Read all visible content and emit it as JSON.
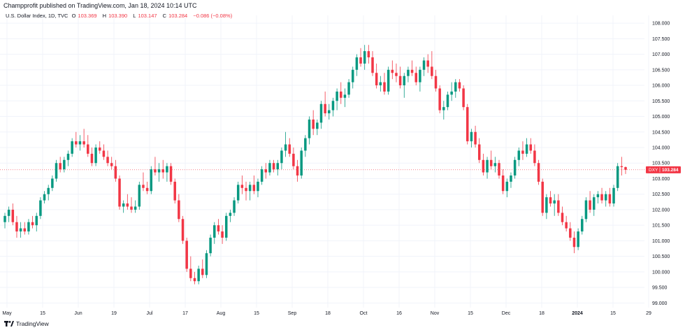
{
  "publisher_line": "Champprofit published on TradingView.com, Jan 18, 2024 10:14 UTC",
  "legend": {
    "symbol": "U.S. Dollar Index, 1D, TVC",
    "o_label": "O",
    "o_value": "103.369",
    "h_label": "H",
    "h_value": "103.390",
    "l_label": "L",
    "l_value": "103.147",
    "c_label": "C",
    "c_value": "103.284",
    "change": "−0.086 (−0.08%)"
  },
  "price_tag": {
    "ticker": "DXY",
    "value": "103.284"
  },
  "brand": "TradingView",
  "colors": {
    "up": "#089981",
    "down": "#f23645",
    "grid": "#f0f3fa",
    "price_line": "#f23645"
  },
  "chart_data": {
    "type": "candlestick",
    "y_ticks": [
      "99.000",
      "99.500",
      "100.000",
      "100.500",
      "101.000",
      "101.500",
      "102.000",
      "102.500",
      "103.000",
      "103.500",
      "104.000",
      "104.500",
      "105.000",
      "105.500",
      "106.000",
      "106.500",
      "107.000",
      "107.500",
      "108.000"
    ],
    "ylim": [
      98.85,
      108.25
    ],
    "x_ticks": [
      "May",
      "15",
      "Jun",
      "19",
      "Jul",
      "17",
      "Aug",
      "15",
      "Sep",
      "18",
      "Oct",
      "16",
      "Nov",
      "15",
      "Dec",
      "18",
      "2024",
      "15",
      "29"
    ],
    "last_close": 103.284,
    "candles": [
      [
        101.6,
        101.9,
        101.4,
        101.8
      ],
      [
        101.8,
        102.1,
        101.6,
        102.0
      ],
      [
        102.0,
        102.2,
        101.5,
        101.6
      ],
      [
        101.6,
        101.8,
        101.1,
        101.3
      ],
      [
        101.3,
        101.6,
        101.1,
        101.4
      ],
      [
        101.4,
        101.6,
        101.2,
        101.3
      ],
      [
        101.3,
        101.7,
        101.2,
        101.6
      ],
      [
        101.6,
        101.8,
        101.4,
        101.5
      ],
      [
        101.5,
        101.9,
        101.3,
        101.8
      ],
      [
        101.8,
        102.4,
        101.7,
        102.3
      ],
      [
        102.3,
        102.6,
        102.2,
        102.5
      ],
      [
        102.5,
        102.8,
        102.3,
        102.7
      ],
      [
        102.7,
        103.1,
        102.6,
        103.0
      ],
      [
        103.0,
        103.6,
        102.9,
        103.5
      ],
      [
        103.5,
        103.7,
        103.2,
        103.3
      ],
      [
        103.3,
        103.7,
        103.2,
        103.6
      ],
      [
        103.6,
        103.9,
        103.4,
        103.8
      ],
      [
        103.8,
        104.3,
        103.7,
        104.2
      ],
      [
        104.2,
        104.5,
        104.0,
        104.1
      ],
      [
        104.1,
        104.4,
        103.9,
        104.2
      ],
      [
        104.2,
        104.6,
        104.0,
        104.1
      ],
      [
        104.1,
        104.4,
        103.7,
        103.8
      ],
      [
        103.8,
        104.0,
        103.4,
        103.5
      ],
      [
        103.5,
        104.1,
        103.4,
        104.0
      ],
      [
        104.0,
        104.2,
        103.8,
        103.9
      ],
      [
        103.9,
        104.1,
        103.6,
        103.7
      ],
      [
        103.7,
        103.9,
        103.4,
        103.5
      ],
      [
        103.5,
        103.7,
        103.3,
        103.4
      ],
      [
        103.4,
        103.6,
        102.9,
        103.0
      ],
      [
        103.0,
        103.1,
        102.0,
        102.1
      ],
      [
        102.1,
        102.3,
        101.9,
        102.2
      ],
      [
        102.2,
        102.5,
        102.0,
        102.1
      ],
      [
        102.1,
        102.4,
        101.9,
        102.0
      ],
      [
        102.0,
        102.3,
        101.9,
        102.1
      ],
      [
        102.1,
        102.9,
        102.0,
        102.8
      ],
      [
        102.8,
        103.2,
        102.6,
        102.7
      ],
      [
        102.7,
        102.9,
        102.5,
        102.6
      ],
      [
        102.6,
        103.4,
        102.5,
        103.3
      ],
      [
        103.3,
        103.7,
        103.1,
        103.2
      ],
      [
        103.2,
        103.5,
        102.9,
        103.3
      ],
      [
        103.3,
        103.6,
        103.0,
        103.2
      ],
      [
        103.2,
        103.5,
        102.9,
        103.4
      ],
      [
        103.4,
        103.5,
        102.8,
        102.9
      ],
      [
        102.9,
        103.0,
        102.2,
        102.3
      ],
      [
        102.3,
        102.5,
        101.6,
        101.7
      ],
      [
        101.7,
        101.8,
        100.9,
        101.0
      ],
      [
        101.0,
        101.1,
        100.0,
        100.1
      ],
      [
        100.1,
        100.5,
        99.7,
        99.8
      ],
      [
        99.8,
        100.0,
        99.6,
        99.7
      ],
      [
        99.7,
        100.2,
        99.6,
        100.1
      ],
      [
        100.1,
        100.4,
        99.8,
        99.9
      ],
      [
        99.9,
        100.7,
        99.8,
        100.6
      ],
      [
        100.6,
        101.2,
        100.5,
        101.1
      ],
      [
        101.1,
        101.6,
        100.9,
        101.5
      ],
      [
        101.5,
        101.7,
        101.2,
        101.3
      ],
      [
        101.3,
        101.5,
        100.9,
        101.1
      ],
      [
        101.1,
        101.9,
        101.0,
        101.8
      ],
      [
        101.8,
        102.0,
        101.6,
        101.9
      ],
      [
        101.9,
        102.4,
        101.8,
        102.3
      ],
      [
        102.3,
        102.9,
        102.2,
        102.8
      ],
      [
        102.8,
        103.1,
        102.5,
        102.7
      ],
      [
        102.7,
        102.9,
        102.3,
        102.6
      ],
      [
        102.6,
        102.9,
        102.3,
        102.8
      ],
      [
        102.8,
        103.1,
        102.5,
        102.6
      ],
      [
        102.6,
        103.0,
        102.4,
        102.9
      ],
      [
        102.9,
        103.4,
        102.8,
        103.3
      ],
      [
        103.3,
        103.5,
        103.0,
        103.2
      ],
      [
        103.2,
        103.6,
        103.1,
        103.5
      ],
      [
        103.5,
        103.6,
        103.2,
        103.3
      ],
      [
        103.3,
        103.6,
        103.1,
        103.5
      ],
      [
        103.5,
        104.0,
        103.3,
        103.9
      ],
      [
        103.9,
        104.5,
        103.7,
        104.1
      ],
      [
        104.1,
        104.3,
        103.7,
        103.8
      ],
      [
        103.8,
        104.0,
        103.3,
        103.4
      ],
      [
        103.4,
        103.6,
        102.9,
        103.1
      ],
      [
        103.1,
        104.0,
        103.0,
        103.9
      ],
      [
        103.9,
        104.4,
        103.7,
        104.3
      ],
      [
        104.3,
        105.0,
        104.1,
        104.9
      ],
      [
        104.9,
        105.2,
        104.4,
        104.6
      ],
      [
        104.6,
        104.9,
        104.4,
        104.8
      ],
      [
        104.8,
        105.5,
        104.6,
        105.4
      ],
      [
        105.4,
        105.8,
        105.0,
        105.1
      ],
      [
        105.1,
        105.4,
        104.9,
        105.2
      ],
      [
        105.2,
        105.6,
        105.0,
        105.5
      ],
      [
        105.5,
        105.9,
        105.2,
        105.8
      ],
      [
        105.8,
        106.1,
        105.4,
        105.6
      ],
      [
        105.6,
        105.9,
        105.3,
        105.7
      ],
      [
        105.7,
        106.2,
        105.6,
        106.1
      ],
      [
        106.1,
        106.6,
        105.9,
        106.5
      ],
      [
        106.5,
        107.0,
        106.3,
        106.9
      ],
      [
        106.9,
        107.2,
        106.6,
        106.7
      ],
      [
        106.7,
        107.3,
        106.5,
        107.1
      ],
      [
        107.1,
        107.3,
        106.7,
        106.9
      ],
      [
        106.9,
        107.1,
        106.3,
        106.4
      ],
      [
        106.4,
        106.7,
        105.9,
        106.0
      ],
      [
        106.0,
        106.3,
        105.8,
        106.1
      ],
      [
        106.1,
        106.4,
        105.7,
        105.8
      ],
      [
        105.8,
        106.6,
        105.7,
        106.5
      ],
      [
        106.5,
        106.8,
        106.2,
        106.4
      ],
      [
        106.4,
        106.7,
        106.1,
        106.3
      ],
      [
        106.3,
        106.6,
        105.9,
        106.0
      ],
      [
        106.0,
        106.4,
        105.6,
        106.3
      ],
      [
        106.3,
        106.6,
        106.1,
        106.5
      ],
      [
        106.5,
        106.8,
        106.3,
        106.4
      ],
      [
        106.4,
        106.6,
        106.0,
        106.1
      ],
      [
        106.1,
        106.6,
        105.8,
        106.5
      ],
      [
        106.5,
        106.9,
        106.3,
        106.8
      ],
      [
        106.8,
        107.0,
        106.4,
        106.6
      ],
      [
        106.6,
        107.1,
        106.2,
        106.3
      ],
      [
        106.3,
        106.5,
        105.8,
        105.9
      ],
      [
        105.9,
        106.0,
        105.1,
        105.2
      ],
      [
        105.2,
        105.5,
        104.9,
        105.3
      ],
      [
        105.3,
        105.8,
        105.2,
        105.7
      ],
      [
        105.7,
        106.1,
        105.5,
        105.8
      ],
      [
        105.8,
        106.2,
        105.6,
        106.1
      ],
      [
        106.1,
        106.2,
        105.8,
        105.9
      ],
      [
        105.9,
        106.0,
        105.2,
        105.3
      ],
      [
        105.3,
        105.4,
        104.1,
        104.2
      ],
      [
        104.2,
        104.6,
        104.0,
        104.5
      ],
      [
        104.5,
        104.7,
        104.0,
        104.1
      ],
      [
        104.1,
        104.3,
        103.5,
        103.6
      ],
      [
        103.6,
        103.8,
        103.1,
        103.2
      ],
      [
        103.2,
        103.7,
        103.0,
        103.6
      ],
      [
        103.6,
        103.9,
        103.3,
        103.4
      ],
      [
        103.4,
        103.7,
        103.2,
        103.5
      ],
      [
        103.5,
        103.6,
        103.0,
        103.1
      ],
      [
        103.1,
        103.3,
        102.5,
        102.6
      ],
      [
        102.6,
        103.0,
        102.4,
        102.9
      ],
      [
        102.9,
        103.2,
        102.7,
        103.1
      ],
      [
        103.1,
        103.7,
        103.0,
        103.6
      ],
      [
        103.6,
        104.0,
        103.4,
        103.9
      ],
      [
        103.9,
        104.2,
        103.6,
        103.8
      ],
      [
        103.8,
        104.3,
        103.7,
        104.1
      ],
      [
        104.1,
        104.3,
        103.8,
        103.9
      ],
      [
        103.9,
        104.1,
        103.4,
        103.5
      ],
      [
        103.5,
        103.6,
        102.8,
        102.9
      ],
      [
        102.9,
        103.0,
        101.8,
        101.9
      ],
      [
        101.9,
        102.5,
        101.7,
        102.4
      ],
      [
        102.4,
        102.6,
        102.1,
        102.2
      ],
      [
        102.2,
        102.5,
        101.8,
        102.3
      ],
      [
        102.3,
        102.5,
        101.8,
        101.9
      ],
      [
        101.9,
        102.1,
        101.5,
        101.6
      ],
      [
        101.6,
        101.8,
        101.3,
        101.4
      ],
      [
        101.4,
        101.6,
        101.0,
        101.1
      ],
      [
        101.1,
        101.3,
        100.6,
        100.8
      ],
      [
        100.8,
        101.4,
        100.7,
        101.3
      ],
      [
        101.3,
        101.8,
        101.2,
        101.7
      ],
      [
        101.7,
        102.4,
        101.6,
        102.3
      ],
      [
        102.3,
        102.6,
        101.9,
        102.0
      ],
      [
        102.0,
        102.5,
        101.8,
        102.4
      ],
      [
        102.4,
        102.6,
        102.2,
        102.5
      ],
      [
        102.5,
        102.7,
        102.2,
        102.3
      ],
      [
        102.3,
        102.6,
        102.1,
        102.5
      ],
      [
        102.5,
        102.7,
        102.1,
        102.2
      ],
      [
        102.2,
        102.8,
        102.1,
        102.7
      ],
      [
        102.7,
        103.5,
        102.6,
        103.4
      ],
      [
        103.4,
        103.7,
        103.1,
        103.369
      ],
      [
        103.369,
        103.39,
        103.147,
        103.284
      ]
    ]
  }
}
